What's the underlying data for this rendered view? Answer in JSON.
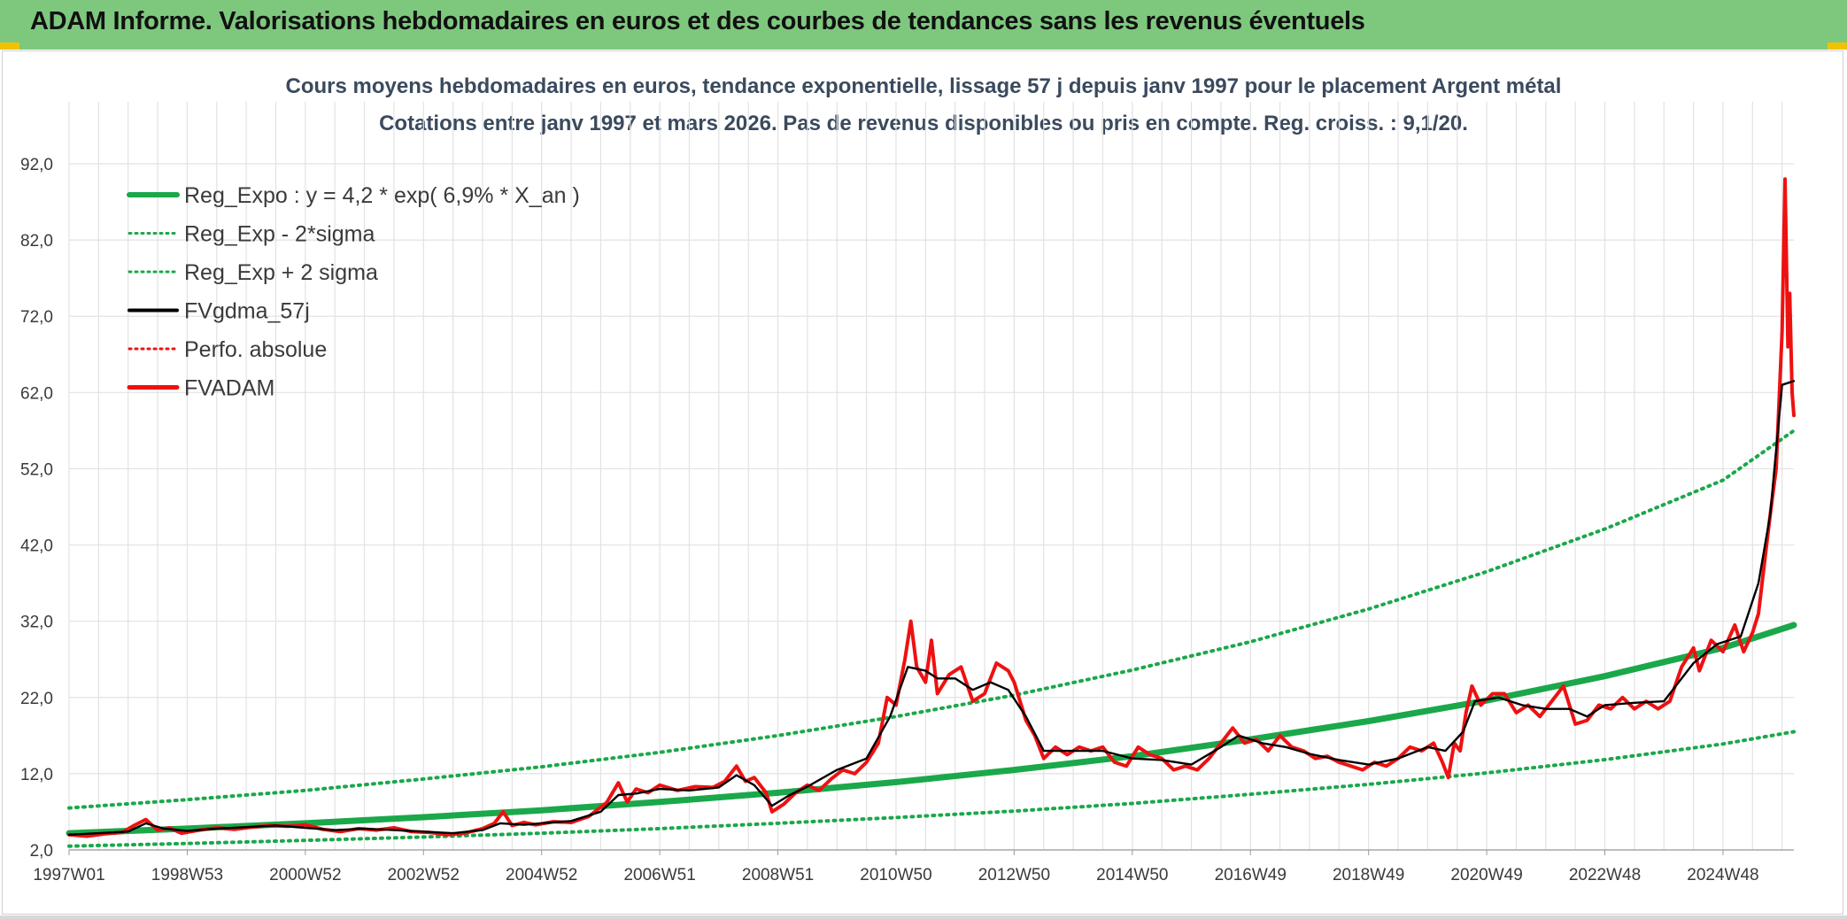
{
  "header": {
    "title": "ADAM Informe. Valorisations hebdomadaires en euros et des courbes de tendances sans les revenus éventuels"
  },
  "colors": {
    "header_bg": "#7ec87e",
    "corner_accent": "#f2c200",
    "trend": "#1aa84a",
    "series_red": "#ee1111",
    "series_black": "#000000",
    "grid": "#e2e2e2",
    "title_text": "#3a4a5e"
  },
  "chart_data": {
    "type": "line",
    "title_line1": "Cours moyens hebdomadaires en euros, tendance exponentielle, lissage 57 j depuis janv 1997 pour le placement Argent métal",
    "title_line2": "Cotations entre janv 1997 et mars 2026. Pas de revenus disponibles ou pris en compte. Reg. croiss. : 9,1/20.",
    "x_range": [
      1997.0,
      2026.2
    ],
    "ylim": [
      2.0,
      92.0
    ],
    "y_ticks": [
      "2,0",
      "12,0",
      "22,0",
      "32,0",
      "42,0",
      "52,0",
      "62,0",
      "72,0",
      "82,0",
      "92,0"
    ],
    "x_ticks": [
      {
        "label": "1997W01",
        "x": 1997.0
      },
      {
        "label": "1998W53",
        "x": 1999.0
      },
      {
        "label": "2000W52",
        "x": 2001.0
      },
      {
        "label": "2002W52",
        "x": 2003.0
      },
      {
        "label": "2004W52",
        "x": 2005.0
      },
      {
        "label": "2006W51",
        "x": 2007.0
      },
      {
        "label": "2008W51",
        "x": 2009.0
      },
      {
        "label": "2010W50",
        "x": 2011.0
      },
      {
        "label": "2012W50",
        "x": 2013.0
      },
      {
        "label": "2014W50",
        "x": 2015.0
      },
      {
        "label": "2016W49",
        "x": 2017.0
      },
      {
        "label": "2018W49",
        "x": 2019.0
      },
      {
        "label": "2020W49",
        "x": 2021.0
      },
      {
        "label": "2022W48",
        "x": 2023.0
      },
      {
        "label": "2024W48",
        "x": 2025.0
      }
    ],
    "grid": true,
    "legend_position": "top-left",
    "legend": [
      {
        "label": "Reg_Expo : y = 4,2 * exp( 6,9% *  X_an )",
        "style": "solid-thick",
        "color": "#1aa84a"
      },
      {
        "label": "Reg_Exp - 2*sigma",
        "style": "dotted",
        "color": "#1aa84a"
      },
      {
        "label": "Reg_Exp + 2 sigma",
        "style": "dotted",
        "color": "#1aa84a"
      },
      {
        "label": "FVgdma_57j",
        "style": "solid",
        "color": "#000000"
      },
      {
        "label": "Perfo. absolue",
        "style": "dotted",
        "color": "#ee1111"
      },
      {
        "label": "FVADAM",
        "style": "solid-thick",
        "color": "#ee1111"
      }
    ],
    "series": [
      {
        "id": "reg_expo",
        "points": [
          [
            1997.0,
            4.2
          ],
          [
            1999.0,
            4.8
          ],
          [
            2001.0,
            5.5
          ],
          [
            2003.0,
            6.3
          ],
          [
            2005.0,
            7.2
          ],
          [
            2007.0,
            8.3
          ],
          [
            2009.0,
            9.5
          ],
          [
            2011.0,
            10.9
          ],
          [
            2013.0,
            12.5
          ],
          [
            2015.0,
            14.3
          ],
          [
            2017.0,
            16.5
          ],
          [
            2019.0,
            18.9
          ],
          [
            2021.0,
            21.6
          ],
          [
            2023.0,
            24.8
          ],
          [
            2025.0,
            28.5
          ],
          [
            2026.2,
            31.5
          ]
        ]
      },
      {
        "id": "reg_minus",
        "points": [
          [
            1997.0,
            2.5
          ],
          [
            1999.0,
            2.85
          ],
          [
            2001.0,
            3.25
          ],
          [
            2003.0,
            3.7
          ],
          [
            2005.0,
            4.2
          ],
          [
            2007.0,
            4.8
          ],
          [
            2009.0,
            5.5
          ],
          [
            2011.0,
            6.25
          ],
          [
            2013.0,
            7.1
          ],
          [
            2015.0,
            8.1
          ],
          [
            2017.0,
            9.3
          ],
          [
            2019.0,
            10.6
          ],
          [
            2021.0,
            12.1
          ],
          [
            2023.0,
            13.85
          ],
          [
            2025.0,
            15.9
          ],
          [
            2026.2,
            17.5
          ]
        ]
      },
      {
        "id": "reg_plus",
        "points": [
          [
            1997.0,
            7.5
          ],
          [
            1999.0,
            8.6
          ],
          [
            2001.0,
            9.8
          ],
          [
            2003.0,
            11.3
          ],
          [
            2005.0,
            12.9
          ],
          [
            2007.0,
            14.8
          ],
          [
            2009.0,
            17.0
          ],
          [
            2011.0,
            19.5
          ],
          [
            2013.0,
            22.3
          ],
          [
            2015.0,
            25.6
          ],
          [
            2017.0,
            29.3
          ],
          [
            2019.0,
            33.6
          ],
          [
            2021.0,
            38.5
          ],
          [
            2023.0,
            44.1
          ],
          [
            2025.0,
            50.5
          ],
          [
            2026.2,
            57.0
          ]
        ]
      },
      {
        "id": "fvgdma_57j",
        "points": [
          [
            1997.0,
            4.0
          ],
          [
            1997.5,
            4.2
          ],
          [
            1998.0,
            4.4
          ],
          [
            1998.3,
            5.5
          ],
          [
            1998.6,
            4.8
          ],
          [
            1999.0,
            4.5
          ],
          [
            1999.5,
            4.8
          ],
          [
            2000.0,
            5.0
          ],
          [
            2000.5,
            5.2
          ],
          [
            2001.0,
            4.9
          ],
          [
            2001.5,
            4.6
          ],
          [
            2002.0,
            4.8
          ],
          [
            2002.5,
            4.6
          ],
          [
            2003.0,
            4.4
          ],
          [
            2003.5,
            4.2
          ],
          [
            2004.0,
            4.6
          ],
          [
            2004.3,
            5.5
          ],
          [
            2004.7,
            5.3
          ],
          [
            2005.0,
            5.5
          ],
          [
            2005.5,
            5.8
          ],
          [
            2006.0,
            7.0
          ],
          [
            2006.3,
            9.2
          ],
          [
            2006.6,
            9.4
          ],
          [
            2007.0,
            10.0
          ],
          [
            2007.5,
            9.8
          ],
          [
            2008.0,
            10.2
          ],
          [
            2008.3,
            11.8
          ],
          [
            2008.6,
            10.5
          ],
          [
            2008.9,
            7.8
          ],
          [
            2009.2,
            9.2
          ],
          [
            2009.5,
            10.3
          ],
          [
            2010.0,
            12.5
          ],
          [
            2010.5,
            14.0
          ],
          [
            2010.9,
            19.5
          ],
          [
            2011.2,
            26.0
          ],
          [
            2011.5,
            25.5
          ],
          [
            2011.7,
            24.5
          ],
          [
            2012.0,
            24.5
          ],
          [
            2012.3,
            23.0
          ],
          [
            2012.6,
            24.0
          ],
          [
            2012.9,
            23.0
          ],
          [
            2013.2,
            19.5
          ],
          [
            2013.5,
            15.0
          ],
          [
            2014.0,
            15.0
          ],
          [
            2014.5,
            15.0
          ],
          [
            2015.0,
            14.0
          ],
          [
            2015.5,
            13.8
          ],
          [
            2016.0,
            13.2
          ],
          [
            2016.5,
            15.5
          ],
          [
            2016.8,
            17.0
          ],
          [
            2017.2,
            16.0
          ],
          [
            2017.6,
            15.5
          ],
          [
            2018.0,
            14.6
          ],
          [
            2018.5,
            13.8
          ],
          [
            2019.0,
            13.2
          ],
          [
            2019.5,
            14.0
          ],
          [
            2020.0,
            15.5
          ],
          [
            2020.3,
            15.0
          ],
          [
            2020.6,
            17.5
          ],
          [
            2020.8,
            21.5
          ],
          [
            2021.2,
            22.0
          ],
          [
            2021.6,
            21.0
          ],
          [
            2022.0,
            20.5
          ],
          [
            2022.4,
            20.5
          ],
          [
            2022.7,
            19.5
          ],
          [
            2023.0,
            21.0
          ],
          [
            2023.5,
            21.3
          ],
          [
            2024.0,
            21.5
          ],
          [
            2024.5,
            26.5
          ],
          [
            2024.9,
            29.0
          ],
          [
            2025.3,
            30.0
          ],
          [
            2025.6,
            37.0
          ],
          [
            2025.8,
            46.0
          ],
          [
            2026.0,
            63.0
          ],
          [
            2026.2,
            63.5
          ]
        ]
      },
      {
        "id": "fvadam",
        "points": [
          [
            1997.0,
            4.0
          ],
          [
            1997.3,
            3.8
          ],
          [
            1997.6,
            4.1
          ],
          [
            1997.9,
            4.3
          ],
          [
            1998.1,
            5.2
          ],
          [
            1998.3,
            6.0
          ],
          [
            1998.5,
            4.6
          ],
          [
            1998.7,
            4.9
          ],
          [
            1998.9,
            4.2
          ],
          [
            1999.2,
            4.6
          ],
          [
            1999.5,
            4.9
          ],
          [
            1999.8,
            4.7
          ],
          [
            2000.1,
            5.0
          ],
          [
            2000.4,
            5.2
          ],
          [
            2000.7,
            5.1
          ],
          [
            2001.0,
            5.3
          ],
          [
            2001.3,
            4.7
          ],
          [
            2001.6,
            4.4
          ],
          [
            2001.9,
            4.8
          ],
          [
            2002.2,
            4.6
          ],
          [
            2002.5,
            4.9
          ],
          [
            2002.8,
            4.4
          ],
          [
            2003.1,
            4.3
          ],
          [
            2003.4,
            4.0
          ],
          [
            2003.7,
            4.2
          ],
          [
            2004.0,
            4.8
          ],
          [
            2004.2,
            5.5
          ],
          [
            2004.35,
            7.0
          ],
          [
            2004.5,
            5.2
          ],
          [
            2004.7,
            5.6
          ],
          [
            2004.9,
            5.3
          ],
          [
            2005.2,
            5.7
          ],
          [
            2005.5,
            5.6
          ],
          [
            2005.8,
            6.4
          ],
          [
            2006.1,
            8.2
          ],
          [
            2006.3,
            10.8
          ],
          [
            2006.45,
            8.3
          ],
          [
            2006.6,
            10.0
          ],
          [
            2006.8,
            9.5
          ],
          [
            2007.0,
            10.5
          ],
          [
            2007.3,
            9.8
          ],
          [
            2007.6,
            10.3
          ],
          [
            2007.9,
            10.2
          ],
          [
            2008.1,
            11.0
          ],
          [
            2008.3,
            13.0
          ],
          [
            2008.45,
            11.0
          ],
          [
            2008.6,
            11.5
          ],
          [
            2008.8,
            9.5
          ],
          [
            2008.9,
            7.0
          ],
          [
            2009.1,
            8.0
          ],
          [
            2009.3,
            9.5
          ],
          [
            2009.5,
            10.5
          ],
          [
            2009.7,
            9.8
          ],
          [
            2009.9,
            11.3
          ],
          [
            2010.1,
            12.5
          ],
          [
            2010.3,
            12.0
          ],
          [
            2010.5,
            13.5
          ],
          [
            2010.7,
            16.0
          ],
          [
            2010.85,
            22.0
          ],
          [
            2011.0,
            21.0
          ],
          [
            2011.15,
            27.0
          ],
          [
            2011.25,
            32.0
          ],
          [
            2011.35,
            26.0
          ],
          [
            2011.5,
            24.0
          ],
          [
            2011.6,
            29.5
          ],
          [
            2011.7,
            22.5
          ],
          [
            2011.9,
            25.0
          ],
          [
            2012.1,
            26.0
          ],
          [
            2012.3,
            21.5
          ],
          [
            2012.5,
            22.5
          ],
          [
            2012.7,
            26.5
          ],
          [
            2012.9,
            25.5
          ],
          [
            2013.0,
            24.0
          ],
          [
            2013.2,
            19.0
          ],
          [
            2013.35,
            17.0
          ],
          [
            2013.5,
            14.0
          ],
          [
            2013.7,
            15.5
          ],
          [
            2013.9,
            14.5
          ],
          [
            2014.1,
            15.5
          ],
          [
            2014.3,
            15.0
          ],
          [
            2014.5,
            15.5
          ],
          [
            2014.7,
            13.5
          ],
          [
            2014.9,
            13.0
          ],
          [
            2015.1,
            15.5
          ],
          [
            2015.3,
            14.5
          ],
          [
            2015.5,
            14.0
          ],
          [
            2015.7,
            12.5
          ],
          [
            2015.9,
            13.0
          ],
          [
            2016.1,
            12.5
          ],
          [
            2016.3,
            14.0
          ],
          [
            2016.5,
            16.0
          ],
          [
            2016.7,
            18.0
          ],
          [
            2016.9,
            16.0
          ],
          [
            2017.1,
            16.5
          ],
          [
            2017.3,
            15.0
          ],
          [
            2017.5,
            17.0
          ],
          [
            2017.7,
            15.5
          ],
          [
            2017.9,
            15.0
          ],
          [
            2018.1,
            14.0
          ],
          [
            2018.3,
            14.3
          ],
          [
            2018.5,
            13.5
          ],
          [
            2018.7,
            13.0
          ],
          [
            2018.9,
            12.5
          ],
          [
            2019.1,
            13.5
          ],
          [
            2019.3,
            13.0
          ],
          [
            2019.5,
            14.0
          ],
          [
            2019.7,
            15.5
          ],
          [
            2019.9,
            15.0
          ],
          [
            2020.1,
            16.0
          ],
          [
            2020.25,
            13.5
          ],
          [
            2020.35,
            11.5
          ],
          [
            2020.45,
            16.0
          ],
          [
            2020.55,
            15.0
          ],
          [
            2020.65,
            20.0
          ],
          [
            2020.75,
            23.5
          ],
          [
            2020.9,
            21.0
          ],
          [
            2021.1,
            22.5
          ],
          [
            2021.3,
            22.5
          ],
          [
            2021.5,
            20.0
          ],
          [
            2021.7,
            21.0
          ],
          [
            2021.9,
            19.5
          ],
          [
            2022.1,
            21.5
          ],
          [
            2022.3,
            23.5
          ],
          [
            2022.5,
            18.5
          ],
          [
            2022.7,
            19.0
          ],
          [
            2022.9,
            21.0
          ],
          [
            2023.1,
            20.5
          ],
          [
            2023.3,
            22.0
          ],
          [
            2023.5,
            20.5
          ],
          [
            2023.7,
            21.5
          ],
          [
            2023.9,
            20.5
          ],
          [
            2024.1,
            21.5
          ],
          [
            2024.3,
            26.0
          ],
          [
            2024.5,
            28.5
          ],
          [
            2024.6,
            25.5
          ],
          [
            2024.8,
            29.5
          ],
          [
            2025.0,
            28.0
          ],
          [
            2025.2,
            31.5
          ],
          [
            2025.35,
            28.0
          ],
          [
            2025.5,
            30.5
          ],
          [
            2025.6,
            33.0
          ],
          [
            2025.7,
            39.5
          ],
          [
            2025.8,
            46.0
          ],
          [
            2025.9,
            52.0
          ],
          [
            2026.0,
            70.0
          ],
          [
            2026.05,
            90.0
          ],
          [
            2026.1,
            68.0
          ],
          [
            2026.13,
            75.0
          ],
          [
            2026.17,
            62.0
          ],
          [
            2026.2,
            59.0
          ]
        ]
      }
    ]
  }
}
